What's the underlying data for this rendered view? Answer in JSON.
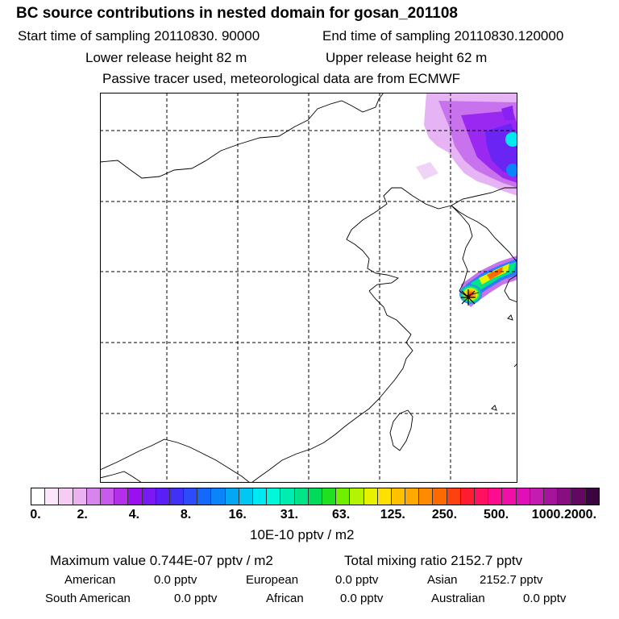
{
  "header": {
    "title": "BC  source contributions in nested domain for gosan_201108",
    "start_time": "Start time of sampling 20110830. 90000",
    "end_time": "End time of sampling 20110830.120000",
    "lower_release": "Lower release height   82 m",
    "upper_release": "Upper release height   62 m",
    "tracer_note": "Passive tracer used, meteorological data are from ECMWF"
  },
  "colorbar": {
    "colors": [
      "#ffffff",
      "#fbe6fb",
      "#f4ccf4",
      "#eab2f2",
      "#d884ee",
      "#c85bec",
      "#b52eec",
      "#9a10f0",
      "#7a1af2",
      "#5b1ef5",
      "#4030f8",
      "#2c4cfa",
      "#1468fc",
      "#0a84f8",
      "#05a6f4",
      "#00c8f2",
      "#00e8f0",
      "#00f8d8",
      "#00ecb0",
      "#00e488",
      "#00dc5a",
      "#20e020",
      "#70f000",
      "#b4f400",
      "#e8f200",
      "#ffe000",
      "#ffc000",
      "#ffa800",
      "#ff8a00",
      "#ff6a00",
      "#ff4010",
      "#ff1c30",
      "#ff1060",
      "#ff0c90",
      "#f010a8",
      "#e010b8",
      "#c41cb0",
      "#a4149c",
      "#860e80",
      "#620862",
      "#3c0440"
    ],
    "tick_labels": [
      "0.",
      "2.",
      "4.",
      "8.",
      "16.",
      "31.",
      "63.",
      "125.",
      "250.",
      "500.",
      "1000.",
      "2000."
    ],
    "units": "10E-10 pptv / m2"
  },
  "stats": {
    "maximum": "Maximum value  0.744E-07 pptv / m2",
    "total": "Total mixing ratio     2152.7 pptv",
    "regions_row1": [
      {
        "name": "American",
        "value": "0.0 pptv"
      },
      {
        "name": "European",
        "value": "0.0 pptv"
      },
      {
        "name": "Asian",
        "value": "2152.7 pptv"
      }
    ],
    "regions_row2": [
      {
        "name": "South American",
        "value": "0.0 pptv"
      },
      {
        "name": "African",
        "value": "0.0 pptv"
      },
      {
        "name": "Australian",
        "value": "0.0 pptv"
      }
    ]
  }
}
